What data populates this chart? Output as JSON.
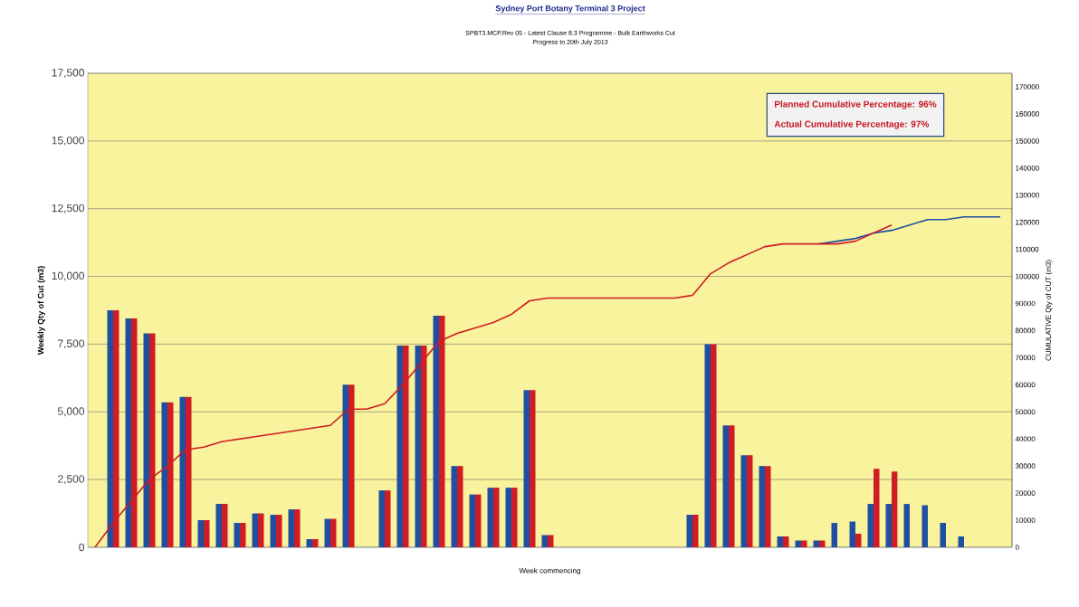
{
  "chart_data": {
    "type": "bar",
    "title": "Sydney Port Botany Terminal 3 Project",
    "subtitle": "SPBT3.MCP.Rev 05 - Latest Clause 8.3 Programme - Bulk Earthworks Cut",
    "xlabel": "Week commencing",
    "ylabel": "Weekly  Qty of Cut (m3)",
    "y2label": "CUMULATIVE Qty of CUT (m3)",
    "annotations": [
      "Planned Cumulative Percentage: 96%",
      "Actual Cumulative Percentage: 97%",
      "Progress to 20th July 2013"
    ],
    "categories": [
      null,
      null,
      null,
      null,
      null,
      null,
      null,
      null,
      null,
      null,
      null,
      null,
      null,
      null,
      null,
      null,
      null,
      null,
      null,
      null,
      null,
      null,
      null,
      null,
      null,
      null,
      null,
      null,
      null,
      null,
      null,
      null,
      null,
      null,
      null,
      null,
      null,
      null,
      null,
      null,
      null,
      null,
      null,
      null,
      null,
      null,
      null,
      null,
      null,
      null,
      null
    ],
    "series": [
      {
        "type": "bar",
        "color": "#1f4fa0",
        "values": [
          0,
          8750,
          8450,
          7900,
          5350,
          5550,
          1000,
          1600,
          900,
          1250,
          1200,
          1400,
          300,
          1050,
          6000,
          0,
          2100,
          7450,
          7450,
          8550,
          3000,
          1950,
          2200,
          2200,
          5800,
          450,
          0,
          0,
          0,
          0,
          0,
          0,
          0,
          1200,
          7500,
          4500,
          3400,
          3000,
          400,
          250,
          250,
          900,
          950,
          1600,
          1600,
          1600,
          1550,
          900,
          400,
          0,
          0
        ]
      },
      {
        "type": "bar",
        "color": "#d01c24",
        "values": [
          0,
          8750,
          8450,
          7900,
          5350,
          5550,
          1000,
          1600,
          900,
          1250,
          1200,
          1400,
          300,
          1050,
          6000,
          0,
          2100,
          7450,
          7450,
          8550,
          3000,
          1950,
          2200,
          2200,
          5800,
          450,
          0,
          0,
          0,
          0,
          0,
          0,
          0,
          1200,
          7500,
          4500,
          3400,
          3000,
          400,
          250,
          250,
          0,
          500,
          2900,
          2800,
          null,
          null,
          null,
          null,
          null,
          null
        ]
      },
      {
        "type": "line",
        "axis": "y2",
        "color": "#1f4fa0",
        "values": [
          null,
          null,
          null,
          null,
          null,
          null,
          null,
          null,
          null,
          null,
          null,
          null,
          null,
          null,
          null,
          null,
          null,
          null,
          null,
          null,
          null,
          null,
          null,
          null,
          null,
          null,
          null,
          null,
          null,
          null,
          null,
          null,
          null,
          null,
          null,
          null,
          null,
          null,
          null,
          null,
          112000,
          113000,
          114000,
          116000,
          117000,
          119000,
          121000,
          121000,
          122000,
          122000,
          122000
        ]
      },
      {
        "type": "line",
        "axis": "y2",
        "color": "#d01c24",
        "values": [
          0,
          9000,
          17000,
          25000,
          30000,
          36000,
          37000,
          39000,
          40000,
          41000,
          42000,
          43000,
          44000,
          45000,
          51000,
          51000,
          53000,
          60000,
          68000,
          76000,
          79000,
          81000,
          83000,
          86000,
          91000,
          92000,
          92000,
          92000,
          92000,
          92000,
          92000,
          92000,
          92000,
          93000,
          101000,
          105000,
          108000,
          111000,
          112000,
          112000,
          112000,
          112000,
          113000,
          116000,
          119000,
          null,
          null,
          null,
          null,
          null,
          null
        ]
      }
    ],
    "ylim": [
      0,
      17500
    ],
    "yticks": [
      0,
      {
        "value": 2500,
        "label": "2,500"
      },
      {
        "value": 5000,
        "label": "5,000"
      },
      {
        "value": 7500,
        "label": "7,500"
      },
      {
        "value": 10000,
        "label": "10,000"
      },
      {
        "value": 12500,
        "label": "12,500"
      },
      {
        "value": 15000,
        "label": "15,000"
      },
      {
        "value": 17500,
        "label": "17,500"
      }
    ],
    "y2lim": [
      0,
      175000
    ],
    "y2ticks": [
      0,
      10000,
      20000,
      30000,
      40000,
      50000,
      60000,
      70000,
      80000,
      90000,
      100000,
      110000,
      120000,
      130000,
      140000,
      150000,
      160000,
      170000
    ],
    "grid": "y",
    "marker": "none",
    "line_style": "solid"
  }
}
